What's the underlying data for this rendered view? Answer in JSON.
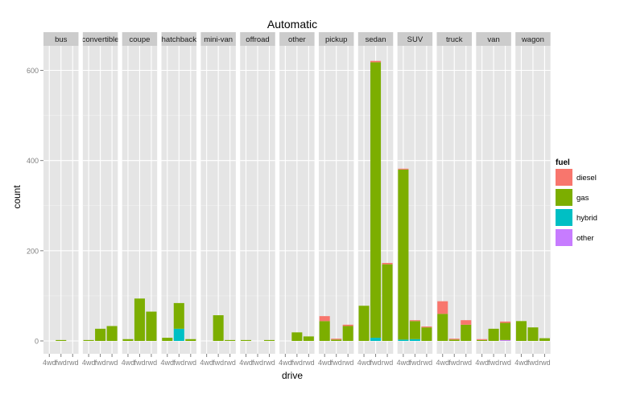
{
  "chart_data": {
    "type": "bar",
    "stacked": true,
    "title": "Automatic",
    "xlabel": "drive",
    "ylabel": "count",
    "ylim": [
      -25,
      650
    ],
    "yticks": [
      0,
      200,
      400,
      600
    ],
    "grid": true,
    "legend_position": "right",
    "drive_levels": [
      "4wd",
      "fwd",
      "rwd"
    ],
    "legend": {
      "title": "fuel",
      "entries": [
        {
          "name": "diesel",
          "color": "#F8766D"
        },
        {
          "name": "gas",
          "color": "#7CAE00"
        },
        {
          "name": "hybrid",
          "color": "#00BFC4"
        },
        {
          "name": "other",
          "color": "#C77CFF"
        }
      ]
    },
    "facets": [
      {
        "label": "bus",
        "bars": [
          {
            "drive": "4wd",
            "diesel": 0,
            "gas": 0,
            "hybrid": 0,
            "other": 0
          },
          {
            "drive": "fwd",
            "diesel": 0,
            "gas": 2,
            "hybrid": 0,
            "other": 0
          },
          {
            "drive": "rwd",
            "diesel": 0,
            "gas": 0,
            "hybrid": 0,
            "other": 0
          }
        ]
      },
      {
        "label": "convertible",
        "bars": [
          {
            "drive": "4wd",
            "diesel": 0,
            "gas": 2,
            "hybrid": 0,
            "other": 0
          },
          {
            "drive": "fwd",
            "diesel": 0,
            "gas": 27,
            "hybrid": 0,
            "other": 0
          },
          {
            "drive": "rwd",
            "diesel": 0,
            "gas": 33,
            "hybrid": 0,
            "other": 0
          }
        ]
      },
      {
        "label": "coupe",
        "bars": [
          {
            "drive": "4wd",
            "diesel": 0,
            "gas": 4,
            "hybrid": 0,
            "other": 0
          },
          {
            "drive": "fwd",
            "diesel": 0,
            "gas": 94,
            "hybrid": 0,
            "other": 0
          },
          {
            "drive": "rwd",
            "diesel": 0,
            "gas": 65,
            "hybrid": 0,
            "other": 0
          }
        ]
      },
      {
        "label": "hatchback",
        "bars": [
          {
            "drive": "4wd",
            "diesel": 0,
            "gas": 7,
            "hybrid": 0,
            "other": 0
          },
          {
            "drive": "fwd",
            "diesel": 0,
            "gas": 57,
            "hybrid": 27,
            "other": 0
          },
          {
            "drive": "rwd",
            "diesel": 0,
            "gas": 4,
            "hybrid": 0,
            "other": 0
          }
        ]
      },
      {
        "label": "mini-van",
        "bars": [
          {
            "drive": "4wd",
            "diesel": 0,
            "gas": 0,
            "hybrid": 0,
            "other": 0
          },
          {
            "drive": "fwd",
            "diesel": 0,
            "gas": 57,
            "hybrid": 0,
            "other": 0
          },
          {
            "drive": "rwd",
            "diesel": 0,
            "gas": 2,
            "hybrid": 0,
            "other": 0
          }
        ]
      },
      {
        "label": "offroad",
        "bars": [
          {
            "drive": "4wd",
            "diesel": 0,
            "gas": 2,
            "hybrid": 0,
            "other": 0
          },
          {
            "drive": "fwd",
            "diesel": 0,
            "gas": 0,
            "hybrid": 0,
            "other": 0
          },
          {
            "drive": "rwd",
            "diesel": 0,
            "gas": 2,
            "hybrid": 0,
            "other": 0
          }
        ]
      },
      {
        "label": "other",
        "bars": [
          {
            "drive": "4wd",
            "diesel": 0,
            "gas": 0,
            "hybrid": 0,
            "other": 0
          },
          {
            "drive": "fwd",
            "diesel": 0,
            "gas": 19,
            "hybrid": 0,
            "other": 0
          },
          {
            "drive": "rwd",
            "diesel": 0,
            "gas": 10,
            "hybrid": 0,
            "other": 0
          }
        ]
      },
      {
        "label": "pickup",
        "bars": [
          {
            "drive": "4wd",
            "diesel": 11,
            "gas": 44,
            "hybrid": 0,
            "other": 0
          },
          {
            "drive": "fwd",
            "diesel": 2,
            "gas": 3,
            "hybrid": 0,
            "other": 0
          },
          {
            "drive": "rwd",
            "diesel": 3,
            "gas": 33,
            "hybrid": 0,
            "other": 0
          }
        ]
      },
      {
        "label": "sedan",
        "bars": [
          {
            "drive": "4wd",
            "diesel": 0,
            "gas": 78,
            "hybrid": 0,
            "other": 0
          },
          {
            "drive": "fwd",
            "diesel": 3,
            "gas": 611,
            "hybrid": 7,
            "other": 0
          },
          {
            "drive": "rwd",
            "diesel": 3,
            "gas": 170,
            "hybrid": 0,
            "other": 0
          }
        ]
      },
      {
        "label": "SUV",
        "bars": [
          {
            "drive": "4wd",
            "diesel": 2,
            "gas": 377,
            "hybrid": 3,
            "other": 0
          },
          {
            "drive": "fwd",
            "diesel": 2,
            "gas": 40,
            "hybrid": 4,
            "other": 0
          },
          {
            "drive": "rwd",
            "diesel": 2,
            "gas": 30,
            "hybrid": 0,
            "other": 0
          }
        ]
      },
      {
        "label": "truck",
        "bars": [
          {
            "drive": "4wd",
            "diesel": 28,
            "gas": 60,
            "hybrid": 0,
            "other": 0
          },
          {
            "drive": "fwd",
            "diesel": 2,
            "gas": 3,
            "hybrid": 0,
            "other": 0
          },
          {
            "drive": "rwd",
            "diesel": 10,
            "gas": 36,
            "hybrid": 0,
            "other": 0
          }
        ]
      },
      {
        "label": "van",
        "bars": [
          {
            "drive": "4wd",
            "diesel": 2,
            "gas": 2,
            "hybrid": 0,
            "other": 0
          },
          {
            "drive": "fwd",
            "diesel": 0,
            "gas": 27,
            "hybrid": 0,
            "other": 0
          },
          {
            "drive": "rwd",
            "diesel": 3,
            "gas": 38,
            "hybrid": 0,
            "other": 2
          }
        ]
      },
      {
        "label": "wagon",
        "bars": [
          {
            "drive": "4wd",
            "diesel": 0,
            "gas": 44,
            "hybrid": 0,
            "other": 0
          },
          {
            "drive": "fwd",
            "diesel": 0,
            "gas": 30,
            "hybrid": 0,
            "other": 0
          },
          {
            "drive": "rwd",
            "diesel": 0,
            "gas": 6,
            "hybrid": 0,
            "other": 0
          }
        ]
      }
    ]
  }
}
